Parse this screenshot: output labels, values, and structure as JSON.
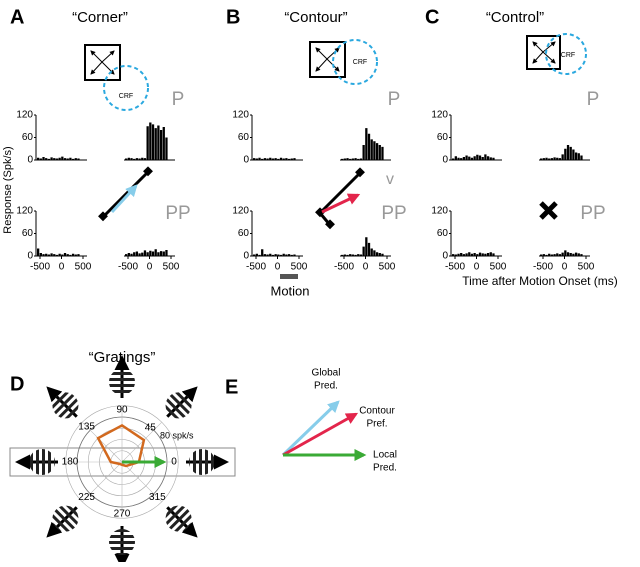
{
  "y_axis_label": "Response (Spk/s)",
  "ylim": [
    0,
    120
  ],
  "yticks": [
    0,
    60,
    120
  ],
  "xlim": [
    -500,
    500
  ],
  "xticks": [
    -500,
    0,
    500
  ],
  "motion_label": "Motion",
  "v_label": "v",
  "x_axis_label": "Time after Motion Onset (ms)",
  "panels": [
    {
      "letter": "A",
      "title": "“Corner”",
      "crf_label": "CRF",
      "p_label": "P",
      "pp_label": "PP",
      "plots": [
        [
          6,
          4,
          8,
          5,
          3,
          7,
          5,
          4,
          6,
          9,
          5,
          4,
          6,
          3,
          5,
          4
        ],
        [
          4,
          6,
          5,
          3,
          5,
          4,
          6,
          5,
          90,
          100,
          95,
          85,
          92,
          80,
          88,
          60
        ],
        [
          20,
          8,
          5,
          6,
          4,
          7,
          5,
          3,
          6,
          4,
          8,
          5,
          3,
          6,
          4,
          5
        ],
        [
          5,
          8,
          6,
          10,
          12,
          7,
          9,
          15,
          10,
          14,
          12,
          18,
          10,
          13,
          12,
          16
        ]
      ]
    },
    {
      "letter": "B",
      "title": "“Contour”",
      "crf_label": "CRF",
      "p_label": "P",
      "pp_label": "PP",
      "plots": [
        [
          5,
          4,
          6,
          3,
          5,
          4,
          6,
          4,
          5,
          3,
          6,
          4,
          5,
          3,
          4,
          5
        ],
        [
          3,
          4,
          5,
          3,
          4,
          5,
          3,
          4,
          40,
          85,
          70,
          55,
          50,
          45,
          40,
          35
        ],
        [
          4,
          6,
          3,
          18,
          5,
          4,
          6,
          3,
          5,
          4,
          3,
          6,
          4,
          5,
          3,
          4
        ],
        [
          3,
          4,
          3,
          5,
          4,
          3,
          5,
          4,
          25,
          50,
          35,
          20,
          15,
          10,
          8,
          6
        ]
      ]
    },
    {
      "letter": "C",
      "title": "“Control”",
      "crf_label": "CRF",
      "p_label": "P",
      "pp_label": "PP",
      "plots": [
        [
          4,
          10,
          6,
          5,
          8,
          12,
          9,
          6,
          10,
          14,
          12,
          8,
          15,
          10,
          7,
          6
        ],
        [
          4,
          5,
          6,
          4,
          5,
          7,
          6,
          5,
          15,
          30,
          40,
          35,
          28,
          20,
          18,
          12
        ],
        [
          5,
          4,
          6,
          8,
          5,
          7,
          10,
          6,
          8,
          5,
          9,
          7,
          6,
          8,
          10,
          7
        ],
        [
          4,
          5,
          3,
          6,
          4,
          5,
          7,
          5,
          9,
          15,
          10,
          8,
          6,
          9,
          7,
          5
        ]
      ]
    }
  ],
  "polar": {
    "letter": "D",
    "title": "“Gratings”",
    "angles": [
      90,
      45,
      0,
      315,
      270,
      225,
      180,
      135
    ],
    "rates": [
      65,
      55,
      30,
      10,
      5,
      5,
      20,
      60
    ],
    "rate_ring": {
      "value": 80,
      "label": "80 spk/s"
    }
  },
  "vectors": {
    "letter": "E",
    "global": [
      "Global",
      "Pred."
    ],
    "contour": [
      "Contour",
      "Pref."
    ],
    "local": [
      "Local",
      "Pred."
    ]
  }
}
